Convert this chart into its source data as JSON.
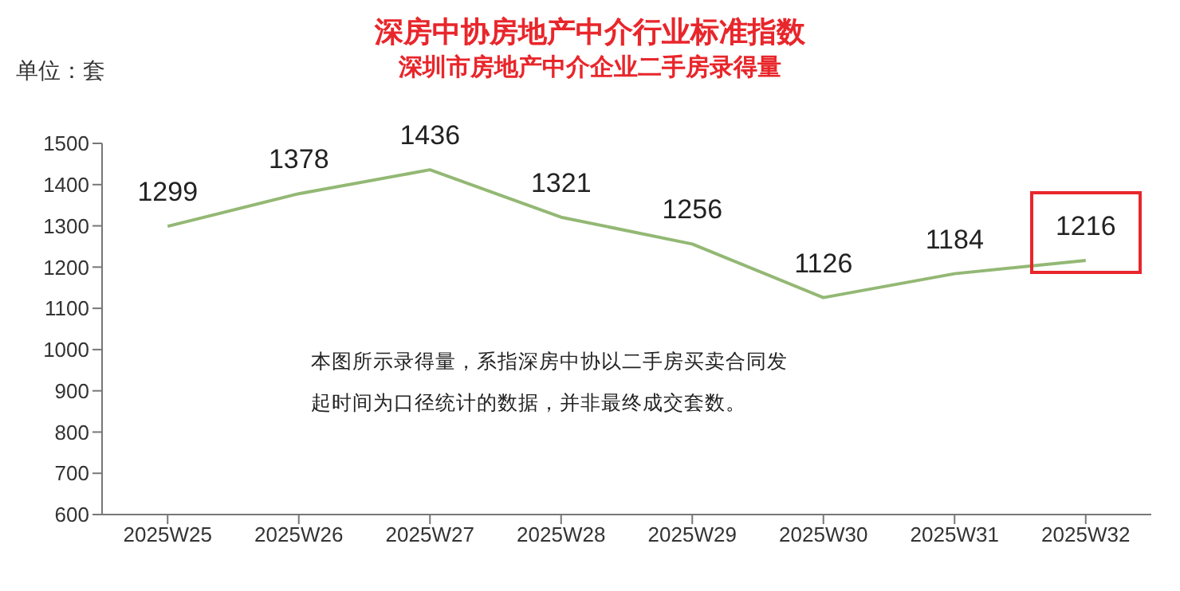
{
  "chart_data": {
    "type": "line",
    "title": "深房中协房地产中介行业标准指数",
    "subtitle": "深圳市房地产中介企业二手房录得量",
    "ylabel": "单位：套",
    "categories": [
      "2025W25",
      "2025W26",
      "2025W27",
      "2025W28",
      "2025W29",
      "2025W30",
      "2025W31",
      "2025W32"
    ],
    "series": [
      {
        "color": "#93b874",
        "values": [
          1299,
          1378,
          1436,
          1321,
          1256,
          1126,
          1184,
          1216
        ]
      }
    ],
    "ylim": [
      600,
      1500
    ],
    "yticks": [
      600,
      700,
      800,
      900,
      1000,
      1100,
      1200,
      1300,
      1400,
      1500
    ],
    "grid": false,
    "legend": false,
    "marker": "none",
    "line_style": "solid",
    "data_labels": true,
    "annotations": [
      "本图所示录得量，系指深房中协以二手房买卖合同发起时间为口径统计的数据，并非最终成交套数。"
    ]
  }
}
